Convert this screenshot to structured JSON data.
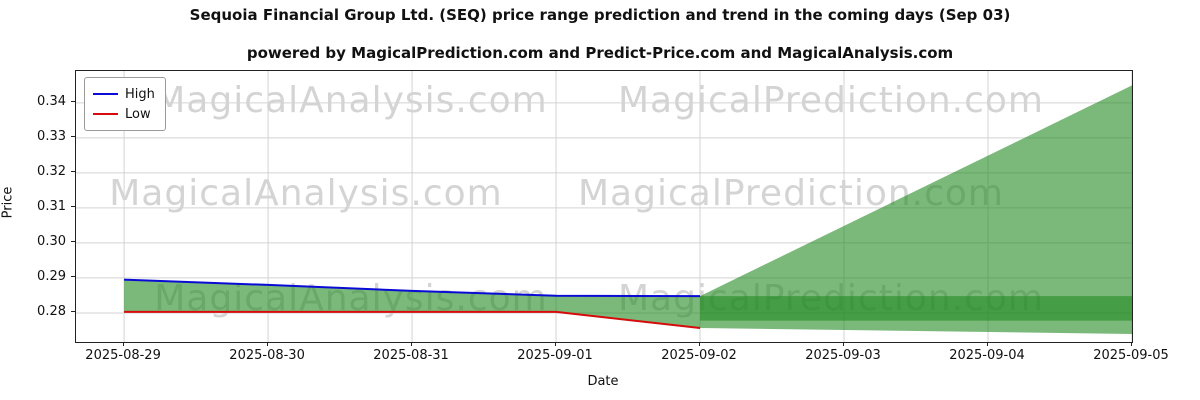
{
  "chart_data": {
    "type": "line",
    "title": "Sequoia Financial Group Ltd. (SEQ) price range prediction and trend in the coming days (Sep 03)",
    "subtitle": "powered by MagicalPrediction.com and Predict-Price.com and MagicalAnalysis.com",
    "xlabel": "Date",
    "ylabel": "Price",
    "x_ticks": [
      "2025-08-29",
      "2025-08-30",
      "2025-08-31",
      "2025-09-01",
      "2025-09-02",
      "2025-09-03",
      "2025-09-04",
      "2025-09-05"
    ],
    "y_ticks": [
      "0.28",
      "0.29",
      "0.30",
      "0.31",
      "0.32",
      "0.33",
      "0.34"
    ],
    "ylim": [
      0.2717,
      0.3491
    ],
    "xlim_days": [
      -0.334,
      7.0
    ],
    "grid": true,
    "legend_position": "upper-left",
    "series": [
      {
        "name": "High",
        "color": "#0b0bd6",
        "x": [
          0,
          1,
          2,
          3,
          4
        ],
        "values": [
          0.2895,
          0.288,
          0.2863,
          0.2849,
          0.2848
        ]
      },
      {
        "name": "Low",
        "color": "#d60b0b",
        "x": [
          0,
          1,
          2,
          3,
          4
        ],
        "values": [
          0.2803,
          0.2803,
          0.2803,
          0.2803,
          0.2757
        ]
      }
    ],
    "bands": [
      {
        "name": "history-range",
        "color": "rgba(34,139,34,0.6)",
        "upper": {
          "x": [
            0,
            1,
            2,
            3,
            4
          ],
          "v": [
            0.2895,
            0.288,
            0.2863,
            0.2849,
            0.2848
          ]
        },
        "lower": {
          "x": [
            0,
            1,
            2,
            3,
            4
          ],
          "v": [
            0.2803,
            0.2803,
            0.2803,
            0.2803,
            0.2757
          ]
        }
      },
      {
        "name": "forecast-fan",
        "color": "rgba(34,139,34,0.6)",
        "upper": {
          "x": [
            4,
            7
          ],
          "v": [
            0.2848,
            0.345
          ]
        },
        "lower": {
          "x": [
            4,
            7
          ],
          "v": [
            0.2757,
            0.274
          ]
        }
      },
      {
        "name": "forecast-range",
        "color": "rgba(34,139,34,0.6)",
        "upper": {
          "x": [
            4,
            7
          ],
          "v": [
            0.2848,
            0.2848
          ]
        },
        "lower": {
          "x": [
            4,
            7
          ],
          "v": [
            0.2778,
            0.2778
          ]
        }
      }
    ],
    "legend": [
      {
        "label": "High",
        "color": "#0b0bd6"
      },
      {
        "label": "Low",
        "color": "#d60b0b"
      }
    ],
    "watermark": {
      "texts": [
        "MagicalAnalysis.com",
        "MagicalPrediction.com"
      ],
      "color": "#d4d4d4"
    }
  }
}
